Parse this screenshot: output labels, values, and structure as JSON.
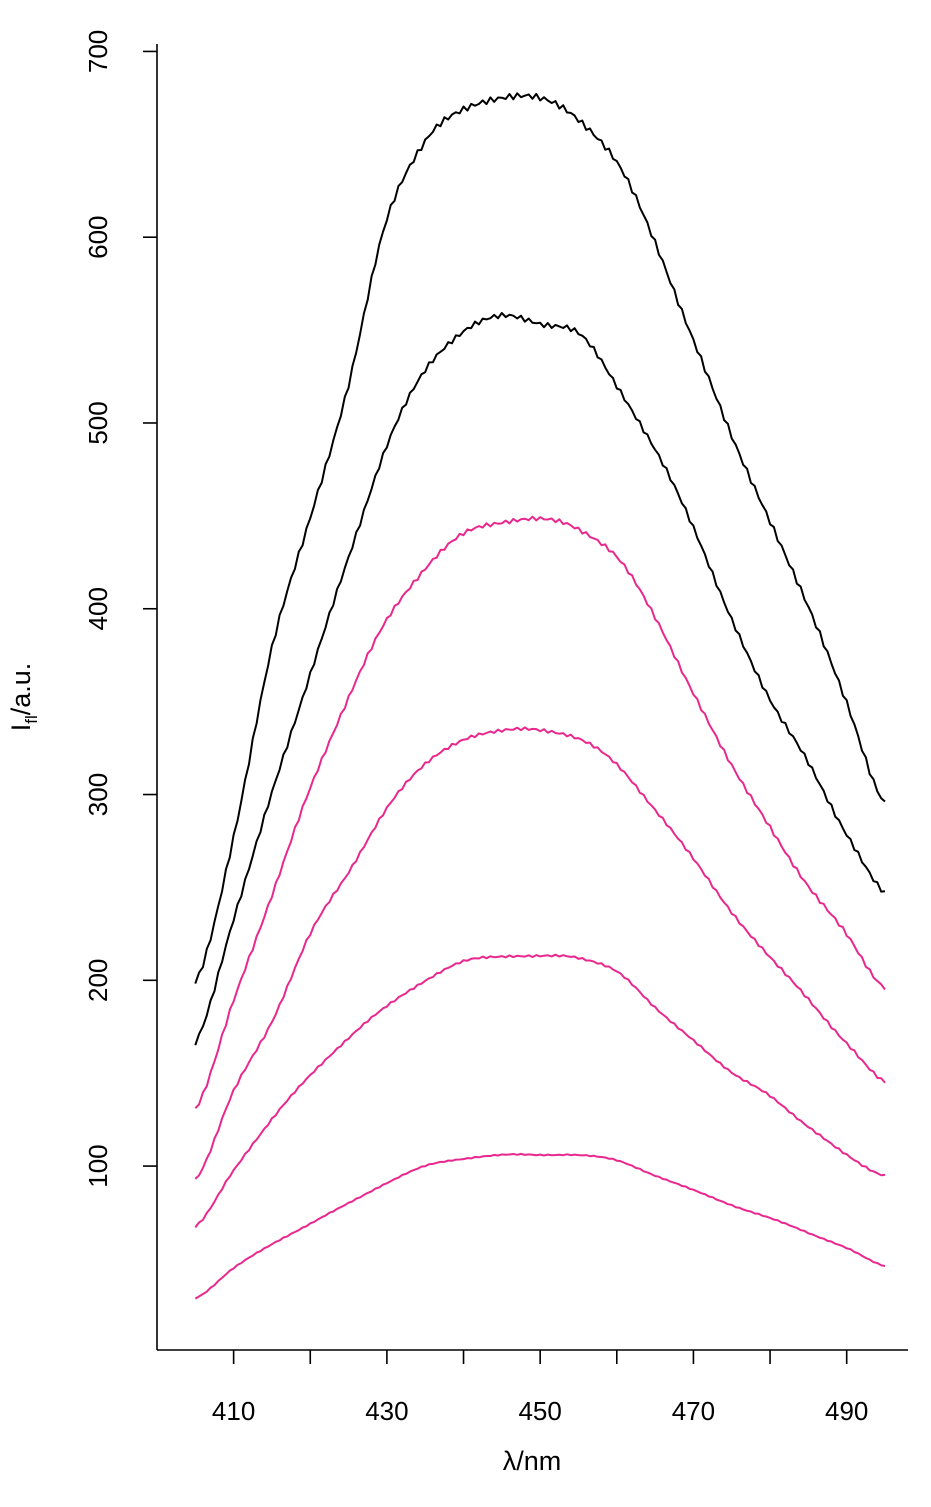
{
  "chart_data": {
    "type": "line",
    "title": "",
    "xlabel": "λ/nm",
    "ylabel": "Ifl/a.u.",
    "ylabel_main": "I",
    "ylabel_sub": "fl",
    "ylabel_rest": "/a.u.",
    "xlim": [
      400,
      498
    ],
    "ylim": [
      1,
      704
    ],
    "x_ticks": [
      410,
      420,
      430,
      440,
      450,
      460,
      470,
      480,
      490
    ],
    "x_tick_labels": [
      "410",
      "",
      "430",
      "",
      "450",
      "",
      "470",
      "",
      "490"
    ],
    "y_ticks": [
      100,
      200,
      300,
      400,
      500,
      600,
      700
    ],
    "y_tick_labels": [
      "100",
      "200",
      "300",
      "400",
      "500",
      "600",
      "700"
    ],
    "grid": false,
    "colors": {
      "black": "#000000",
      "magenta": "#e8288e"
    },
    "x": [
      405,
      410,
      415,
      420,
      425,
      430,
      435,
      440,
      445,
      450,
      455,
      460,
      465,
      470,
      475,
      480,
      485,
      490,
      495
    ],
    "series": [
      {
        "color": "#000000",
        "values": [
          198,
          278,
          378,
          450,
          520,
          610,
          652,
          668,
          676,
          674,
          664,
          640,
          597,
          545,
          492,
          448,
          400,
          350,
          295
        ]
      },
      {
        "color": "#000000",
        "values": [
          167,
          232,
          302,
          364,
          428,
          488,
          528,
          550,
          557,
          554,
          548,
          520,
          486,
          443,
          395,
          350,
          318,
          278,
          247
        ]
      },
      {
        "color": "#e8288e",
        "values": [
          130,
          190,
          245,
          304,
          352,
          394,
          422,
          440,
          447,
          448,
          443,
          428,
          395,
          355,
          315,
          283,
          250,
          225,
          196
        ]
      },
      {
        "color": "#e8288e",
        "values": [
          93,
          140,
          178,
          225,
          258,
          293,
          316,
          330,
          334,
          335,
          330,
          316,
          292,
          265,
          237,
          212,
          190,
          166,
          145
        ]
      },
      {
        "color": "#e8288e",
        "values": [
          67,
          98,
          125,
          149,
          169,
          186,
          200,
          210,
          213,
          213,
          212,
          205,
          185,
          168,
          150,
          138,
          121,
          106,
          95
        ]
      },
      {
        "color": "#e8288e",
        "values": [
          29,
          45,
          58,
          69,
          80,
          91,
          100,
          104,
          106,
          106,
          106,
          103,
          95,
          87,
          79,
          72,
          64,
          56,
          46
        ]
      }
    ]
  }
}
